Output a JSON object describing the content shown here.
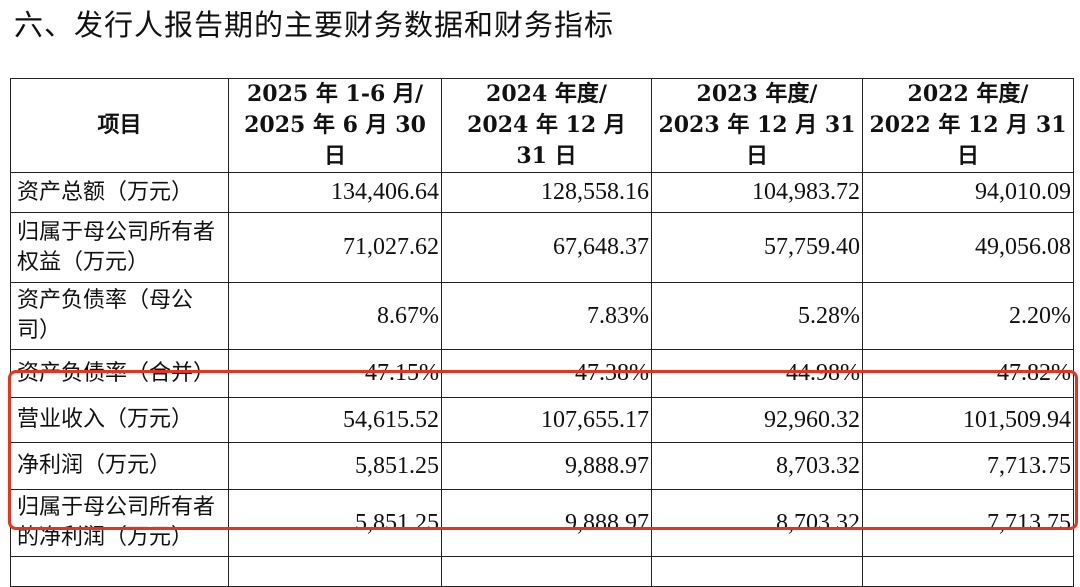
{
  "title": "六、发行人报告期的主要财务数据和财务指标",
  "headers": {
    "item": "项目",
    "cols": [
      {
        "l1": "2025 年 1-6 月/",
        "l2": "2025 年 6 月 30 日"
      },
      {
        "l1": "2024 年度/",
        "l2": "2024 年 12 月 31 日"
      },
      {
        "l1": "2023 年度/",
        "l2": "2023 年 12 月 31 日"
      },
      {
        "l1": "2022 年度/",
        "l2": "2022 年 12 月 31 日"
      }
    ]
  },
  "rows": [
    {
      "label": "资产总额（万元）",
      "values": [
        "134,406.64",
        "128,558.16",
        "104,983.72",
        "94,010.09"
      ]
    },
    {
      "label": "归属于母公司所有者权益（万元）",
      "values": [
        "71,027.62",
        "67,648.37",
        "57,759.40",
        "49,056.08"
      ]
    },
    {
      "label": "资产负债率（母公司）",
      "values": [
        "8.67%",
        "7.83%",
        "5.28%",
        "2.20%"
      ]
    },
    {
      "label": "资产负债率（合并）",
      "values": [
        "47.15%",
        "47.38%",
        "44.98%",
        "47.82%"
      ]
    },
    {
      "label": "营业收入（万元）",
      "values": [
        "54,615.52",
        "107,655.17",
        "92,960.32",
        "101,509.94"
      ]
    },
    {
      "label": "净利润（万元）",
      "values": [
        "5,851.25",
        "9,888.97",
        "8,703.32",
        "7,713.75"
      ]
    },
    {
      "label": "归属于母公司所有者的净利润（万元）",
      "values": [
        "5,851.25",
        "9,888.97",
        "8,703.32",
        "7,713.75"
      ]
    }
  ],
  "highlight_color": "#e8321e"
}
